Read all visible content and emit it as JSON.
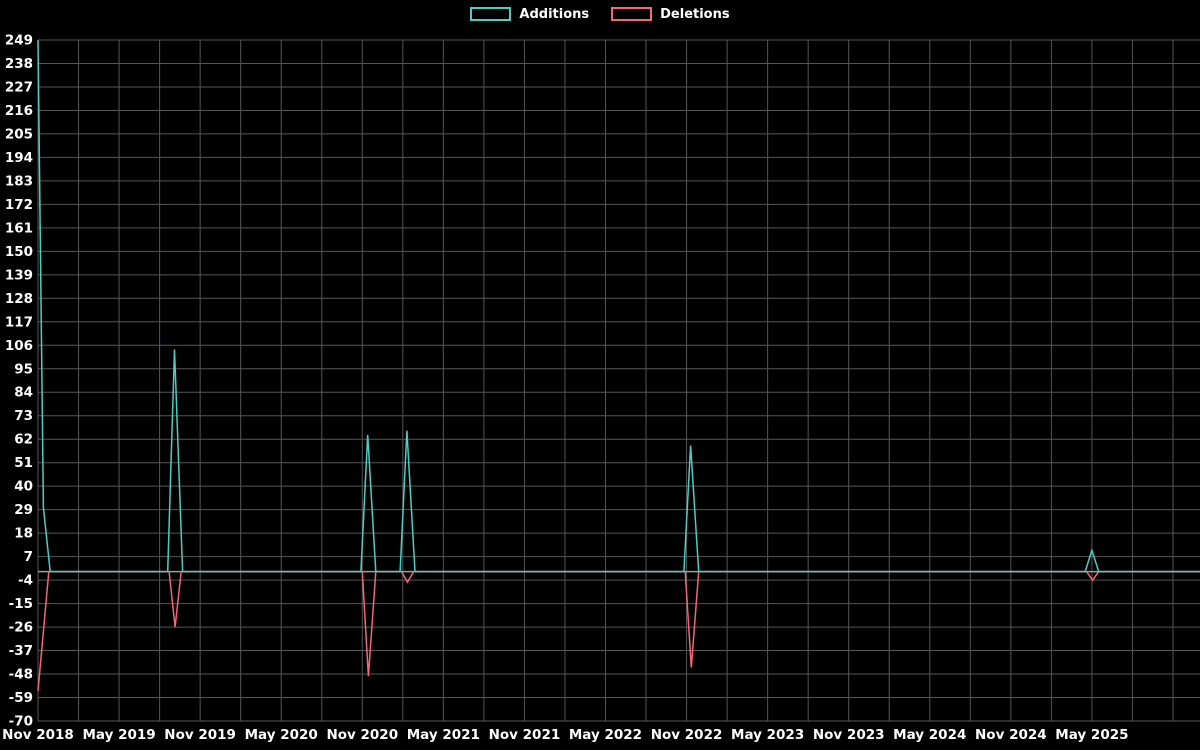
{
  "chart_data": {
    "type": "line",
    "title": "",
    "background_color": "#000000",
    "grid": true,
    "grid_color": "#565656",
    "text_color": "#ffffff",
    "zero_line_color": "#9aa0a6",
    "legend_position": "top-center",
    "x_unit": "months since Nov 2018",
    "xlim": [
      0,
      86
    ],
    "ylim": [
      -70,
      249
    ],
    "x_grid_step": 3,
    "y_ticks": [
      249,
      238,
      227,
      216,
      205,
      194,
      183,
      172,
      161,
      150,
      139,
      128,
      117,
      106,
      95,
      84,
      73,
      62,
      51,
      40,
      29,
      18,
      7,
      -4,
      -15,
      -26,
      -37,
      -48,
      -59,
      -70
    ],
    "x_ticks": [
      {
        "pos": 0,
        "label": "Nov 2018"
      },
      {
        "pos": 6,
        "label": "May 2019"
      },
      {
        "pos": 12,
        "label": "Nov 2019"
      },
      {
        "pos": 18,
        "label": "May 2020"
      },
      {
        "pos": 24,
        "label": "Nov 2020"
      },
      {
        "pos": 30,
        "label": "May 2021"
      },
      {
        "pos": 36,
        "label": "Nov 2021"
      },
      {
        "pos": 42,
        "label": "May 2022"
      },
      {
        "pos": 48,
        "label": "Nov 2022"
      },
      {
        "pos": 54,
        "label": "May 2023"
      },
      {
        "pos": 60,
        "label": "Nov 2023"
      },
      {
        "pos": 66,
        "label": "May 2024"
      },
      {
        "pos": 72,
        "label": "Nov 2024"
      },
      {
        "pos": 78,
        "label": "May 2025"
      }
    ],
    "series": [
      {
        "name": "Additions",
        "color": "#4ecdc4",
        "points": [
          [
            0,
            249
          ],
          [
            0.4,
            30
          ],
          [
            0.9,
            0
          ],
          [
            9.6,
            0
          ],
          [
            10.1,
            104
          ],
          [
            10.7,
            0
          ],
          [
            23.9,
            0
          ],
          [
            24.4,
            64
          ],
          [
            25.0,
            0
          ],
          [
            26.8,
            0
          ],
          [
            27.3,
            66
          ],
          [
            27.9,
            0
          ],
          [
            47.8,
            0
          ],
          [
            48.3,
            59
          ],
          [
            48.9,
            0
          ],
          [
            77.5,
            0
          ],
          [
            78.0,
            10
          ],
          [
            78.5,
            0
          ],
          [
            86,
            0
          ]
        ]
      },
      {
        "name": "Deletions",
        "color": "#f4657e",
        "points": [
          [
            0,
            -56
          ],
          [
            0.8,
            0
          ],
          [
            9.7,
            0
          ],
          [
            10.15,
            -26
          ],
          [
            10.6,
            0
          ],
          [
            24.0,
            0
          ],
          [
            24.45,
            -49
          ],
          [
            25.0,
            0
          ],
          [
            26.9,
            0
          ],
          [
            27.35,
            -5
          ],
          [
            27.8,
            0
          ],
          [
            47.9,
            0
          ],
          [
            48.35,
            -45
          ],
          [
            48.9,
            0
          ],
          [
            77.6,
            0
          ],
          [
            78.05,
            -4
          ],
          [
            78.5,
            0
          ],
          [
            86,
            0
          ]
        ]
      }
    ],
    "notable_points": [
      {
        "period": "Nov 2018",
        "additions": 249,
        "deletions": -56
      },
      {
        "period": "Oct 2019",
        "additions": 104,
        "deletions": -26
      },
      {
        "period": "Nov 2020",
        "additions": 64,
        "deletions": -49
      },
      {
        "period": "Feb 2021",
        "additions": 66,
        "deletions": -5
      },
      {
        "period": "Nov 2022",
        "additions": 59,
        "deletions": -45
      },
      {
        "period": "May 2025",
        "additions": 10,
        "deletions": -4
      }
    ]
  }
}
